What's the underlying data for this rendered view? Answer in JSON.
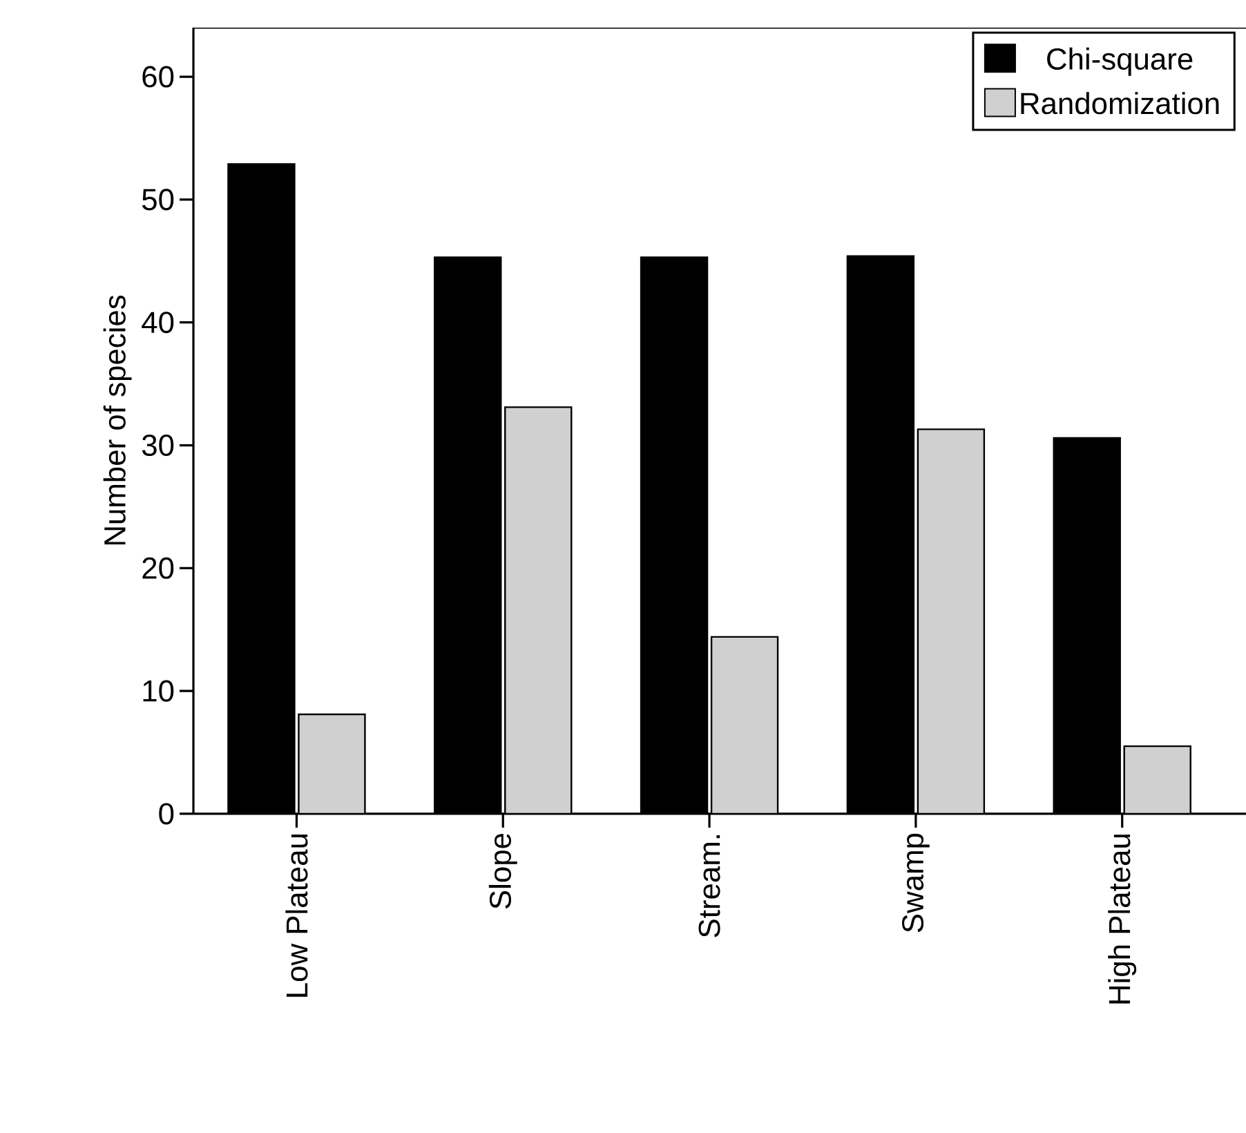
{
  "chart_data": {
    "type": "bar",
    "ylabel": "Number of species",
    "categories": [
      "Low Plateau",
      "Slope",
      "Stream.",
      "Swamp",
      "High Plateau"
    ],
    "series": [
      {
        "name": "Chi-square",
        "color": "#000000",
        "values": [
          52.9,
          45.3,
          45.3,
          45.4,
          30.6
        ]
      },
      {
        "name": "Randomization",
        "color": "#d0d0d0",
        "values": [
          8.1,
          33.1,
          14.4,
          31.3,
          5.5
        ]
      }
    ],
    "ylim": [
      0,
      64
    ],
    "yticks": [
      0,
      10,
      20,
      30,
      40,
      50,
      60
    ],
    "legend": "top right",
    "grid": false
  }
}
